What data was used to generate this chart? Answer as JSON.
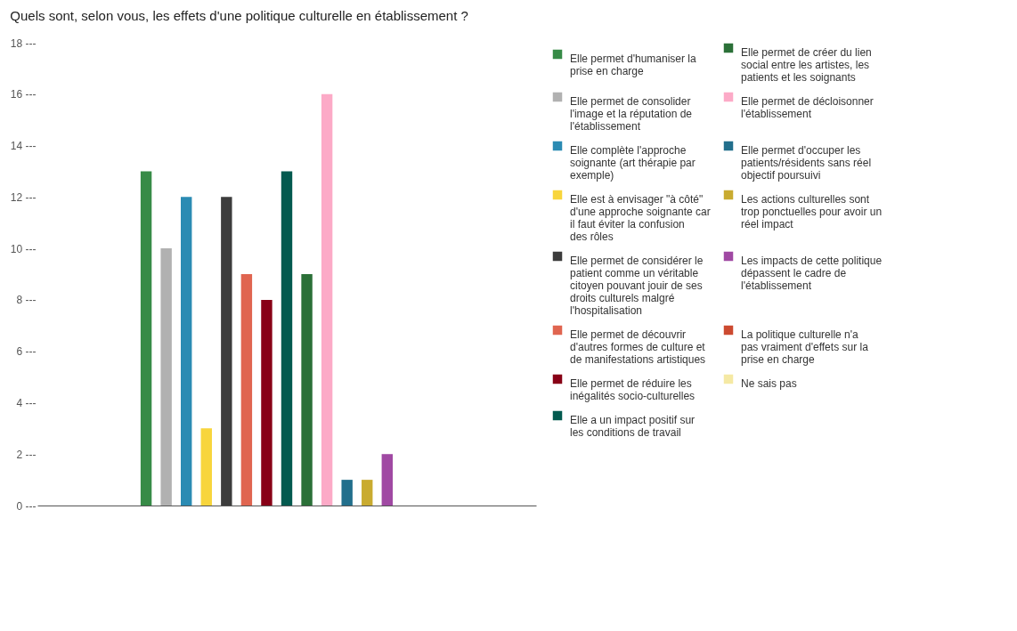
{
  "chart_data": {
    "type": "bar",
    "title": "Quels sont, selon vous, les effets d'une politique culturelle en établissement ?",
    "categories": [
      null
    ],
    "series": [
      {
        "name": "Elle permet d'humaniser la prise en charge",
        "color": "#378b47",
        "values": [
          13
        ]
      },
      {
        "name": "Elle permet de consolider l'image et la réputation de l'établissement",
        "color": "#b1b1b1",
        "values": [
          10
        ]
      },
      {
        "name": "Elle complète l'approche soignante (art thérapie par exemple)",
        "color": "#2b8bb3",
        "values": [
          12
        ]
      },
      {
        "name": "Elle est à envisager \"à côté\" d'une approche soignante car il faut éviter la confusion des rôles",
        "color": "#f8d53c",
        "values": [
          3
        ]
      },
      {
        "name": "Elle permet de considérer le patient comme un véritable citoyen pouvant jouir de ses droits culturels malgré l'hospitalisation",
        "color": "#3c3c3c",
        "values": [
          12
        ]
      },
      {
        "name": "Elle permet de découvrir d'autres formes de culture et de manifestations artistiques",
        "color": "#e06550",
        "values": [
          9
        ]
      },
      {
        "name": "Elle permet de réduire les inégalités socio-culturelles",
        "color": "#880016",
        "values": [
          8
        ]
      },
      {
        "name": "Elle a un impact positif sur les conditions de travail",
        "color": "#035a4f",
        "values": [
          13
        ]
      },
      {
        "name": "Elle permet de créer du lien social entre les artistes, les patients et les soignants",
        "color": "#2b7038",
        "values": [
          9
        ]
      },
      {
        "name": "Elle permet de décloisonner l'établissement",
        "color": "#fcaac7",
        "values": [
          16
        ]
      },
      {
        "name": "Elle permet d'occuper les patients/résidents sans réel objectif poursuivi",
        "color": "#226f8c",
        "values": [
          1
        ]
      },
      {
        "name": "Les actions culturelles sont trop ponctuelles pour avoir un réel impact",
        "color": "#c9ab30",
        "values": [
          1
        ]
      },
      {
        "name": "Les impacts de cette politique dépassent le cadre de l'établissement",
        "color": "#a049a3",
        "values": [
          2
        ]
      },
      {
        "name": "La politique culturelle n'a pas vraiment d'effets sur la prise en charge",
        "color": "#cc4a30",
        "values": [
          0
        ]
      },
      {
        "name": "Ne sais pas",
        "color": "#f5e9a4",
        "values": [
          0
        ]
      }
    ],
    "ylim": [
      0,
      18
    ],
    "yticks": [
      {
        "value": 0,
        "label": "0 ---"
      },
      {
        "value": 2,
        "label": "2 ---"
      },
      {
        "value": 4,
        "label": "4 ---"
      },
      {
        "value": 6,
        "label": "6 ---"
      },
      {
        "value": 8,
        "label": "8 ---"
      },
      {
        "value": 10,
        "label": "10 ---"
      },
      {
        "value": 12,
        "label": "12 ---"
      },
      {
        "value": 14,
        "label": "14 ---"
      },
      {
        "value": 16,
        "label": "16 ---"
      },
      {
        "value": 18,
        "label": "18 ---"
      }
    ],
    "tick_labels": "y",
    "grid": false,
    "legend": "right"
  }
}
